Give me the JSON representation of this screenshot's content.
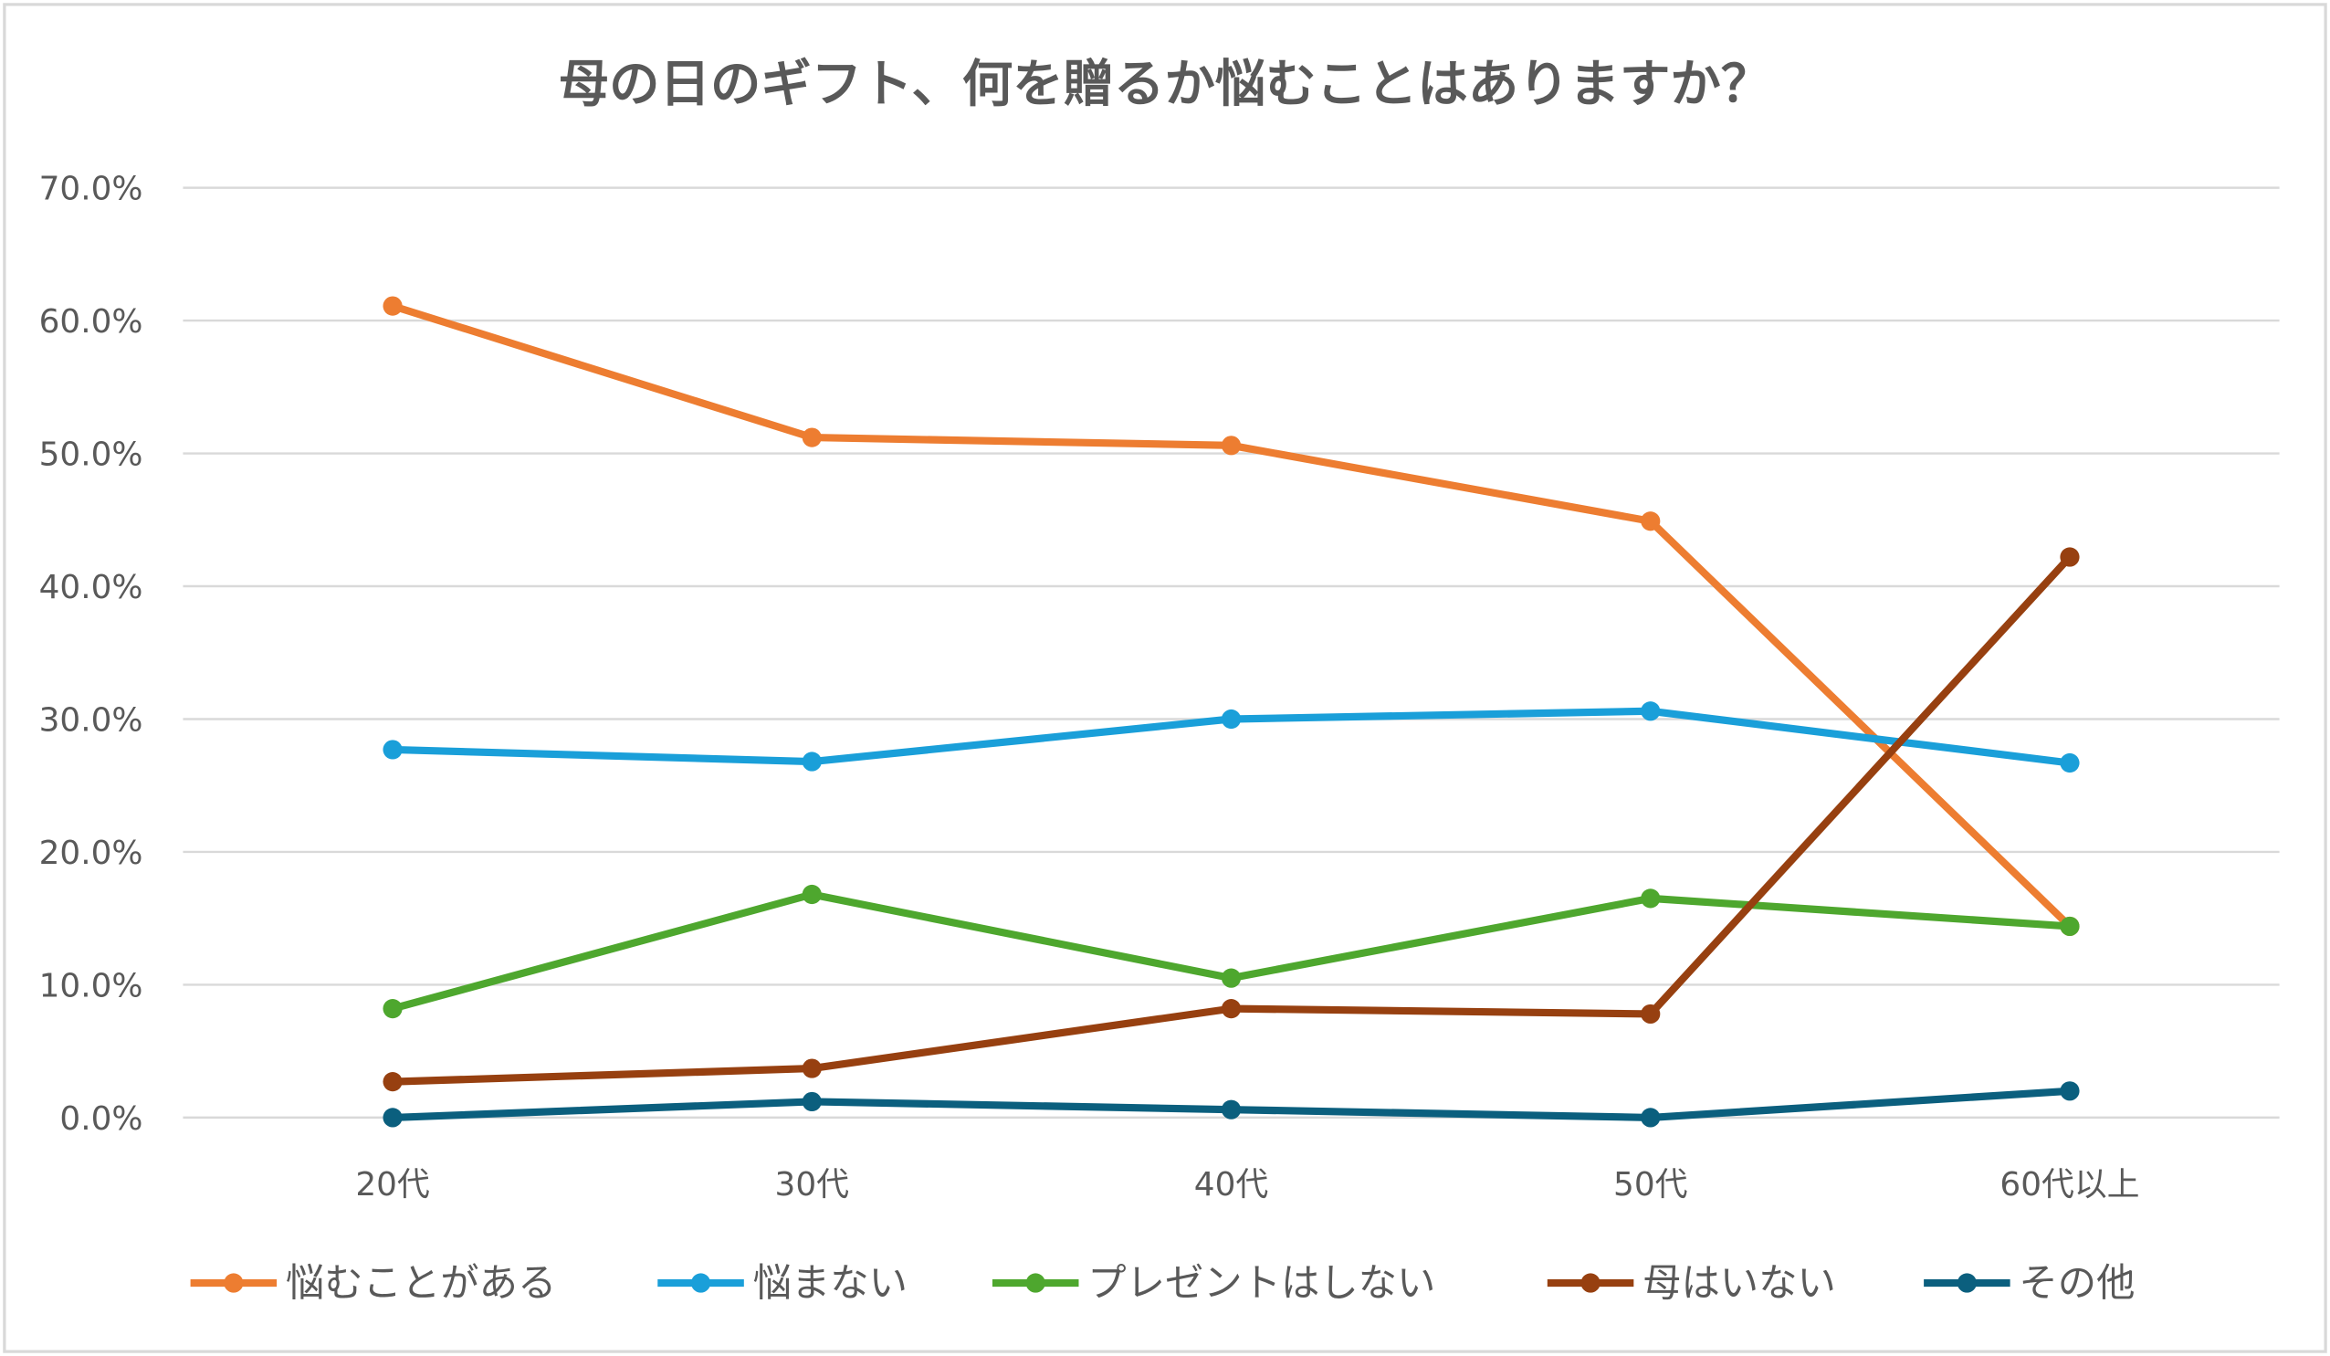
{
  "chart_data": {
    "type": "line",
    "title": "母の日のギフト、何を贈るか悩むことはありますか？",
    "xlabel": "",
    "ylabel": "",
    "categories": [
      "20代",
      "30代",
      "40代",
      "50代",
      "60代以上"
    ],
    "ylim": [
      0,
      70
    ],
    "yticks": [
      0,
      10,
      20,
      30,
      40,
      50,
      60,
      70
    ],
    "ytick_labels": [
      "0.0%",
      "10.0%",
      "20.0%",
      "30.0%",
      "40.0%",
      "50.0%",
      "60.0%",
      "70.0%"
    ],
    "grid": true,
    "legend_position": "bottom",
    "series": [
      {
        "name": "悩むことがある",
        "color": "#ED7D31",
        "values": [
          61.1,
          51.2,
          50.6,
          44.9,
          14.4
        ]
      },
      {
        "name": "悩まない",
        "color": "#1A9FD9",
        "values": [
          27.7,
          26.8,
          30.0,
          30.6,
          26.7
        ]
      },
      {
        "name": "プレゼントはしない",
        "color": "#4EA72E",
        "values": [
          8.2,
          16.8,
          10.5,
          16.5,
          14.4
        ]
      },
      {
        "name": "母はいない",
        "color": "#974010",
        "values": [
          2.7,
          3.7,
          8.2,
          7.8,
          42.2
        ]
      },
      {
        "name": "その他",
        "color": "#0B5F7E",
        "values": [
          0.0,
          1.2,
          0.6,
          0.0,
          2.0
        ]
      }
    ]
  }
}
